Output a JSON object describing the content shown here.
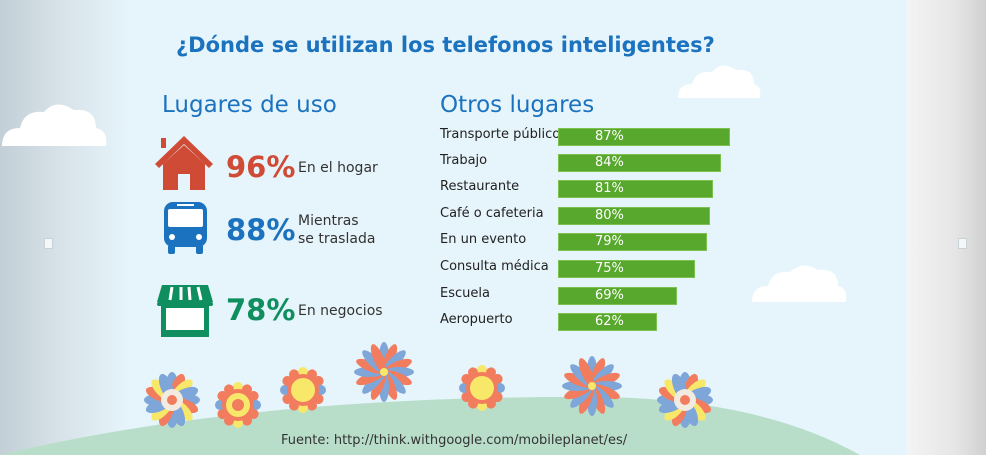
{
  "title": "¿Dónde se utilizan los telefonos inteligentes?",
  "left_section": {
    "heading": "Lugares de uso",
    "stats": [
      {
        "icon": "house-icon",
        "value": "96%",
        "label": "En el hogar",
        "color": "#d04b35"
      },
      {
        "icon": "bus-icon",
        "value": "88%",
        "label_line1": "Mientras",
        "label_line2": "se traslada",
        "color": "#1b72be"
      },
      {
        "icon": "store-icon",
        "value": "78%",
        "label": "En negocios",
        "color": "#0f8f5f"
      }
    ]
  },
  "chart_data": {
    "type": "bar",
    "title": "Otros lugares",
    "orientation": "horizontal",
    "categories": [
      "Transporte público",
      "Trabajo",
      "Restaurante",
      "Café o cafeteria",
      "En un evento",
      "Consulta médica",
      "Escuela",
      "Aeropuerto"
    ],
    "values": [
      87,
      84,
      81,
      80,
      79,
      75,
      69,
      62
    ],
    "value_labels": [
      "87%",
      "84%",
      "81%",
      "80%",
      "79%",
      "75%",
      "69%",
      "62%"
    ],
    "unit": "%",
    "bar_color": "#58a82e"
  },
  "source": "Fuente: http://think.withgoogle.com/mobileplanet/es/"
}
